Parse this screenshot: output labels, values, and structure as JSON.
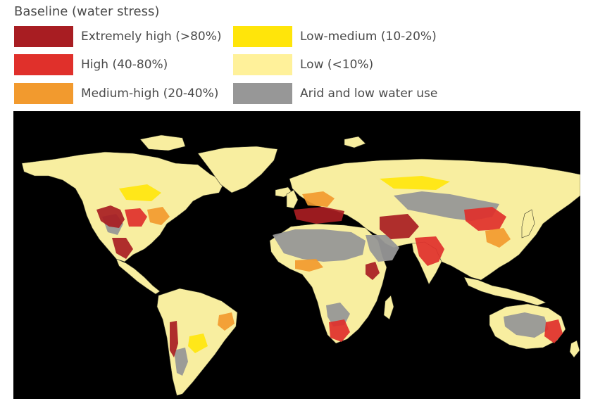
{
  "legend": {
    "title": "Baseline (water stress)",
    "items": [
      {
        "label": "Extremely high (>80%)",
        "color": "#a81d22"
      },
      {
        "label": "High (40-80%)",
        "color": "#e0302b"
      },
      {
        "label": "Medium-high (20-40%)",
        "color": "#f29a2e"
      },
      {
        "label": "Low-medium (10-20%)",
        "color": "#ffe50a"
      },
      {
        "label": "Low (<10%)",
        "color": "#fff19a"
      },
      {
        "label": "Arid and low water use",
        "color": "#979797"
      }
    ]
  },
  "map": {
    "background_color": "#000000",
    "land_color": "#f8eea0",
    "border_color": "#3a3a2a"
  }
}
